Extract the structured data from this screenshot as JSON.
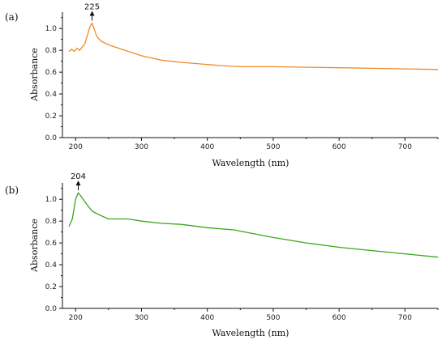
{
  "chart_data": [
    {
      "type": "line",
      "panel_label": "(a)",
      "xlabel": "Wavelength (nm)",
      "ylabel": "Absorbance",
      "xlim": [
        180,
        750
      ],
      "ylim": [
        0.0,
        1.15
      ],
      "xticks": [
        200,
        300,
        400,
        500,
        600,
        700
      ],
      "yticks": [
        0.0,
        0.2,
        0.4,
        0.6,
        0.8,
        1.0
      ],
      "grid": false,
      "color": "#f08a24",
      "annotation": {
        "label": "225",
        "x": 225,
        "y": 1.05
      },
      "series": [
        {
          "x": [
            190,
            194,
            198,
            202,
            206,
            210,
            214,
            218,
            222,
            225,
            228,
            232,
            236,
            240,
            250,
            260,
            280,
            300,
            330,
            360,
            400,
            420,
            450,
            500,
            550,
            600,
            650,
            700,
            750
          ],
          "y": [
            0.79,
            0.81,
            0.79,
            0.82,
            0.8,
            0.83,
            0.86,
            0.94,
            1.02,
            1.05,
            1.0,
            0.93,
            0.9,
            0.88,
            0.85,
            0.83,
            0.79,
            0.75,
            0.71,
            0.69,
            0.67,
            0.66,
            0.65,
            0.65,
            0.645,
            0.64,
            0.635,
            0.63,
            0.625
          ]
        }
      ]
    },
    {
      "type": "line",
      "panel_label": "(b)",
      "xlabel": "Wavelength (nm)",
      "ylabel": "Absorbance",
      "xlim": [
        180,
        750
      ],
      "ylim": [
        0.0,
        1.15
      ],
      "xticks": [
        200,
        300,
        400,
        500,
        600,
        700
      ],
      "yticks": [
        0.0,
        0.2,
        0.4,
        0.6,
        0.8,
        1.0
      ],
      "grid": false,
      "color": "#3aa61a",
      "annotation": {
        "label": "204",
        "x": 204,
        "y": 1.06
      },
      "series": [
        {
          "x": [
            190,
            195,
            200,
            204,
            208,
            215,
            225,
            235,
            250,
            280,
            300,
            330,
            360,
            400,
            440,
            500,
            550,
            600,
            650,
            700,
            750
          ],
          "y": [
            0.75,
            0.82,
            1.0,
            1.06,
            1.03,
            0.97,
            0.89,
            0.86,
            0.82,
            0.82,
            0.8,
            0.78,
            0.77,
            0.74,
            0.72,
            0.65,
            0.6,
            0.56,
            0.53,
            0.5,
            0.47
          ]
        }
      ]
    }
  ]
}
